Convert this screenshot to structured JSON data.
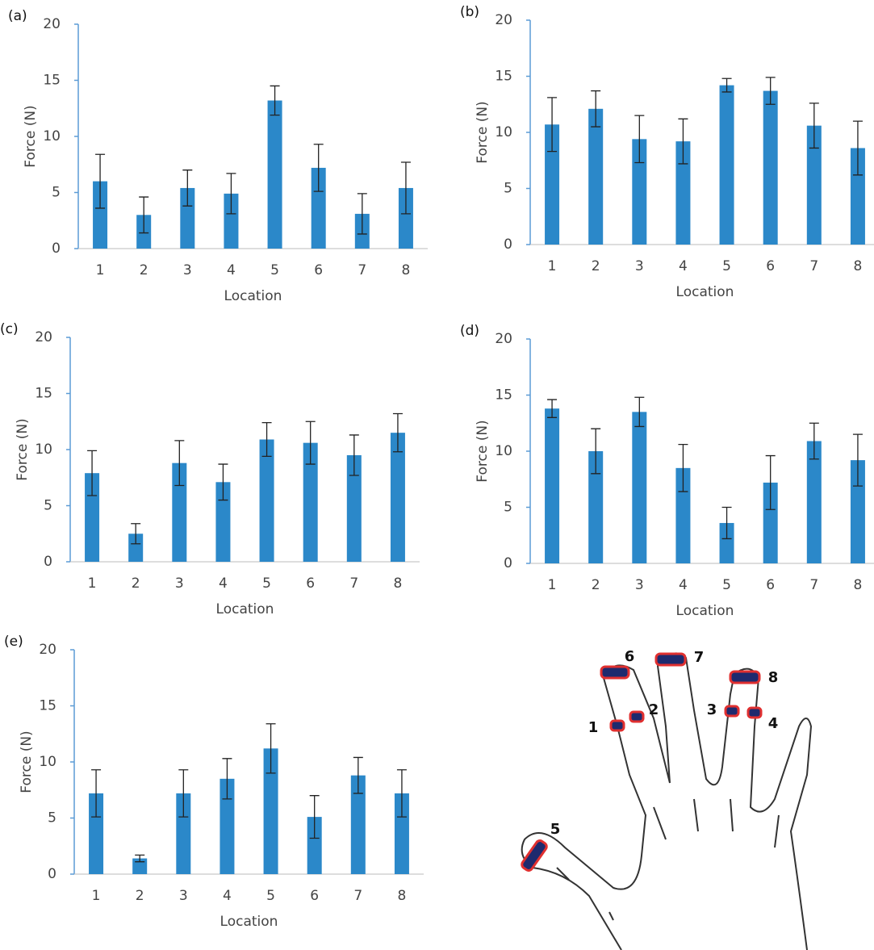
{
  "chart_data": [
    {
      "type": "bar",
      "label": "(a)",
      "xlabel": "Location",
      "ylabel": "Force (N)",
      "color": "#2b88c9",
      "categories": [
        "1",
        "2",
        "3",
        "4",
        "5",
        "6",
        "7",
        "8"
      ],
      "values": [
        6.0,
        3.0,
        5.4,
        4.9,
        13.2,
        7.2,
        3.1,
        5.4
      ],
      "errors": [
        2.4,
        1.6,
        1.6,
        1.8,
        1.3,
        2.1,
        1.8,
        2.3
      ],
      "ylim": [
        0,
        20
      ],
      "yticks": [
        0,
        5,
        10,
        15,
        20
      ]
    },
    {
      "type": "bar",
      "label": "(b)",
      "xlabel": "Location",
      "ylabel": "Force (N)",
      "color": "#2b88c9",
      "categories": [
        "1",
        "2",
        "3",
        "4",
        "5",
        "6",
        "7",
        "8"
      ],
      "values": [
        10.7,
        12.1,
        9.4,
        9.2,
        14.2,
        13.7,
        10.6,
        8.6
      ],
      "errors": [
        2.4,
        1.6,
        2.1,
        2.0,
        0.6,
        1.2,
        2.0,
        2.4
      ],
      "ylim": [
        0,
        20
      ],
      "yticks": [
        0,
        5,
        10,
        15,
        20
      ]
    },
    {
      "type": "bar",
      "label": "(c)",
      "xlabel": "Location",
      "ylabel": "Force (N)",
      "color": "#2b88c9",
      "categories": [
        "1",
        "2",
        "3",
        "4",
        "5",
        "6",
        "7",
        "8"
      ],
      "values": [
        7.9,
        2.5,
        8.8,
        7.1,
        10.9,
        10.6,
        9.5,
        11.5
      ],
      "errors": [
        2.0,
        0.9,
        2.0,
        1.6,
        1.5,
        1.9,
        1.8,
        1.7
      ],
      "ylim": [
        0,
        20
      ],
      "yticks": [
        0,
        5,
        10,
        15,
        20
      ]
    },
    {
      "type": "bar",
      "label": "(d)",
      "xlabel": "Location",
      "ylabel": "Force (N)",
      "color": "#2b88c9",
      "categories": [
        "1",
        "2",
        "3",
        "4",
        "5",
        "6",
        "7",
        "8"
      ],
      "values": [
        13.8,
        10.0,
        13.5,
        8.5,
        3.6,
        7.2,
        10.9,
        9.2
      ],
      "errors": [
        0.8,
        2.0,
        1.3,
        2.1,
        1.4,
        2.4,
        1.6,
        2.3
      ],
      "ylim": [
        0,
        20
      ],
      "yticks": [
        0,
        5,
        10,
        15,
        20
      ]
    },
    {
      "type": "bar",
      "label": "(e)",
      "xlabel": "Location",
      "ylabel": "Force (N)",
      "color": "#2b88c9",
      "categories": [
        "1",
        "2",
        "3",
        "4",
        "5",
        "6",
        "7",
        "8"
      ],
      "values": [
        7.2,
        1.4,
        7.2,
        8.5,
        11.2,
        5.1,
        8.8,
        7.2
      ],
      "errors": [
        2.1,
        0.3,
        2.1,
        1.8,
        2.2,
        1.9,
        1.6,
        2.1
      ],
      "ylim": [
        0,
        20
      ],
      "yticks": [
        0,
        5,
        10,
        15,
        20
      ]
    }
  ],
  "hand_labels": [
    "1",
    "2",
    "3",
    "4",
    "5",
    "6",
    "7",
    "8"
  ]
}
